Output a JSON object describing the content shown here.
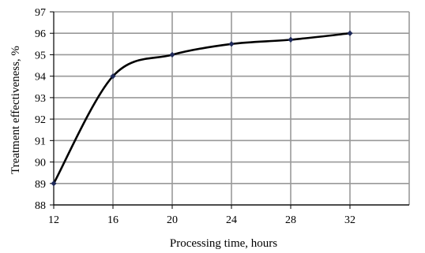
{
  "chart_data": {
    "type": "line",
    "title": "",
    "xlabel": "Processing time, hours",
    "ylabel": "Treatment effectiveness, %",
    "x_ticks": [
      12,
      16,
      20,
      24,
      28,
      32
    ],
    "y_ticks": [
      88,
      89,
      90,
      91,
      92,
      93,
      94,
      95,
      96,
      97
    ],
    "xlim": [
      12,
      36
    ],
    "ylim": [
      88,
      97
    ],
    "grid": true,
    "legend": "none",
    "series": [
      {
        "x": [
          12,
          16,
          20,
          24,
          28,
          32
        ],
        "y": [
          89,
          94,
          95,
          95.5,
          95.7,
          96
        ]
      }
    ],
    "colors": {
      "line": "#000000",
      "marker": "#1f2a5a",
      "grid": "#999999",
      "axis": "#000000"
    }
  }
}
